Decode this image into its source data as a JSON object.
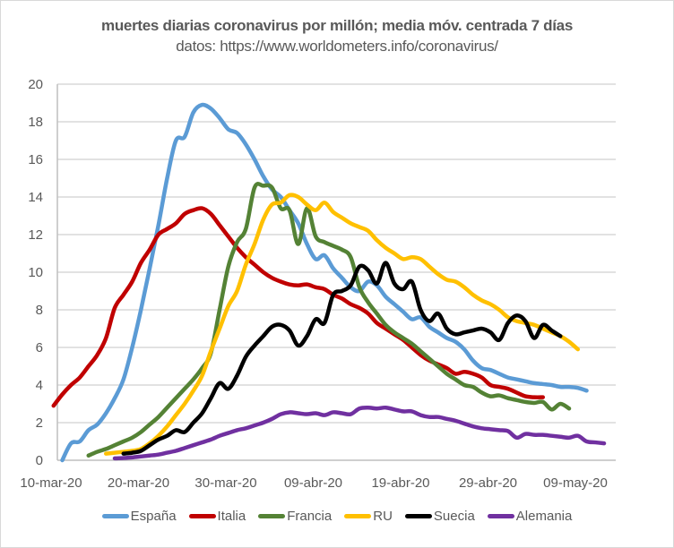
{
  "chart_data": {
    "type": "line",
    "title": "muertes diarias coronavirus por millón; media móv. centrada 7 días",
    "subtitle": "datos: https://www.worldometers.info/coronavirus/",
    "xlabel": "",
    "ylabel": "",
    "ylim": [
      0,
      20
    ],
    "yticks": [
      "0",
      "2",
      "4",
      "6",
      "8",
      "10",
      "12",
      "14",
      "16",
      "18",
      "20"
    ],
    "x_start_date": "10-mar-20",
    "x_unit": "days since 10-mar-20",
    "xticks": [
      {
        "day": 0,
        "label": "10-mar-20"
      },
      {
        "day": 10,
        "label": "20-mar-20"
      },
      {
        "day": 20,
        "label": "30-mar-20"
      },
      {
        "day": 30,
        "label": "09-abr-20"
      },
      {
        "day": 40,
        "label": "19-abr-20"
      },
      {
        "day": 50,
        "label": "29-abr-20"
      },
      {
        "day": 60,
        "label": "09-may-20"
      }
    ],
    "grid": true,
    "legend_position": "bottom",
    "series": [
      {
        "name": "España",
        "color": "#5b9bd5",
        "start_day": 2,
        "values": [
          0,
          0.9,
          1.0,
          1.6,
          1.9,
          2.5,
          3.3,
          4.3,
          6.0,
          8.0,
          10.2,
          12.5,
          15.0,
          17.0,
          17.2,
          18.5,
          18.9,
          18.7,
          18.2,
          17.6,
          17.4,
          16.8,
          16.0,
          15.1,
          14.4,
          14.0,
          13.3,
          12.6,
          11.5,
          10.7,
          10.9,
          10.2,
          9.7,
          9.2,
          9.0,
          9.5,
          9.3,
          8.7,
          8.3,
          7.9,
          7.5,
          7.6,
          7.1,
          6.8,
          6.5,
          6.3,
          5.9,
          5.3,
          4.9,
          4.8,
          4.6,
          4.4,
          4.3,
          4.2,
          4.1,
          4.05,
          4.0,
          3.9,
          3.9,
          3.85,
          3.7
        ]
      },
      {
        "name": "Italia",
        "color": "#c00000",
        "start_day": 1,
        "values": [
          2.9,
          3.5,
          4.0,
          4.4,
          5.0,
          5.6,
          6.5,
          8.1,
          8.8,
          9.5,
          10.5,
          11.2,
          12.0,
          12.3,
          12.6,
          13.1,
          13.3,
          13.4,
          13.1,
          12.5,
          11.9,
          11.3,
          10.8,
          10.4,
          10.0,
          9.7,
          9.5,
          9.35,
          9.3,
          9.35,
          9.2,
          9.1,
          8.8,
          8.6,
          8.3,
          8.1,
          7.8,
          7.3,
          7.0,
          6.7,
          6.4,
          6.0,
          5.6,
          5.3,
          5.1,
          4.9,
          4.6,
          4.7,
          4.6,
          4.4,
          4.0,
          3.9,
          3.8,
          3.6,
          3.4,
          3.35,
          3.35
        ]
      },
      {
        "name": "Francia",
        "color": "#548235",
        "start_day": 5,
        "values": [
          0.25,
          0.45,
          0.6,
          0.8,
          1.0,
          1.2,
          1.5,
          1.9,
          2.3,
          2.8,
          3.3,
          3.8,
          4.3,
          4.9,
          5.7,
          8.0,
          10.3,
          11.6,
          12.3,
          14.5,
          14.6,
          14.5,
          13.4,
          13.3,
          11.5,
          13.4,
          11.9,
          11.6,
          11.4,
          11.2,
          10.8,
          9.2,
          8.4,
          7.8,
          7.2,
          6.8,
          6.5,
          6.2,
          5.8,
          5.4,
          5.0,
          4.6,
          4.3,
          4.0,
          3.9,
          3.6,
          3.4,
          3.45,
          3.3,
          3.2,
          3.1,
          3.05,
          3.1,
          2.7,
          3.0,
          2.75
        ]
      },
      {
        "name": "RU",
        "color": "#ffc000",
        "start_day": 7,
        "values": [
          0.35,
          0.4,
          0.45,
          0.5,
          0.6,
          0.9,
          1.3,
          1.8,
          2.4,
          3.0,
          3.7,
          4.5,
          5.8,
          7.0,
          8.2,
          9.0,
          10.4,
          11.5,
          12.8,
          13.6,
          13.7,
          14.1,
          14.0,
          13.6,
          13.3,
          13.7,
          13.2,
          12.9,
          12.6,
          12.4,
          12.2,
          11.7,
          11.3,
          11.0,
          10.7,
          10.8,
          10.7,
          10.3,
          9.9,
          9.6,
          9.5,
          9.2,
          8.8,
          8.5,
          8.3,
          8.0,
          7.6,
          7.4,
          7.3,
          7.2,
          7.0,
          6.8,
          6.6,
          6.3,
          5.9
        ]
      },
      {
        "name": "Suecia",
        "color": "#000000",
        "start_day": 9,
        "values": [
          0.35,
          0.4,
          0.5,
          0.8,
          1.1,
          1.3,
          1.6,
          1.5,
          2.0,
          2.5,
          3.3,
          4.1,
          3.8,
          4.5,
          5.5,
          6.1,
          6.6,
          7.1,
          7.2,
          6.9,
          6.1,
          6.6,
          7.5,
          7.3,
          8.8,
          9.0,
          9.3,
          10.3,
          10.1,
          9.4,
          10.5,
          9.4,
          9.1,
          9.5,
          8.0,
          7.4,
          7.8,
          7.0,
          6.7,
          6.8,
          6.9,
          7.0,
          6.8,
          6.4,
          7.3,
          7.7,
          7.4,
          6.5,
          7.2,
          6.9,
          6.6
        ]
      },
      {
        "name": "Alemania",
        "color": "#7030a0",
        "start_day": 8,
        "values": [
          0.1,
          0.12,
          0.15,
          0.2,
          0.25,
          0.3,
          0.4,
          0.5,
          0.65,
          0.8,
          0.95,
          1.1,
          1.3,
          1.45,
          1.6,
          1.7,
          1.85,
          2.0,
          2.2,
          2.45,
          2.55,
          2.5,
          2.45,
          2.5,
          2.4,
          2.55,
          2.5,
          2.45,
          2.75,
          2.8,
          2.75,
          2.8,
          2.7,
          2.6,
          2.6,
          2.4,
          2.3,
          2.3,
          2.2,
          2.1,
          1.95,
          1.8,
          1.7,
          1.65,
          1.6,
          1.55,
          1.2,
          1.4,
          1.35,
          1.35,
          1.3,
          1.25,
          1.2,
          1.3,
          1.0,
          0.95,
          0.9
        ]
      }
    ]
  }
}
